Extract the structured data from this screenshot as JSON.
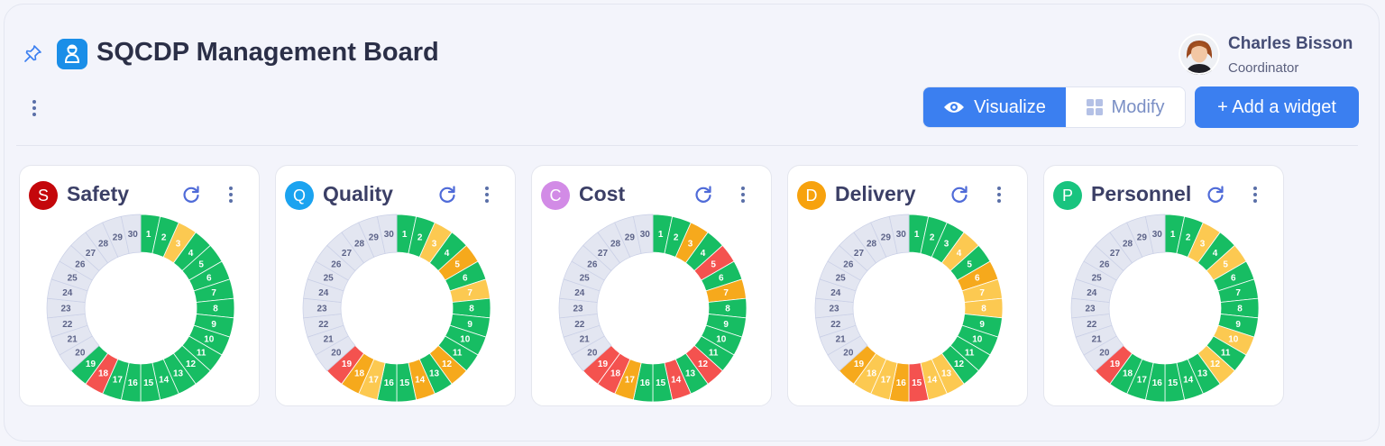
{
  "header": {
    "title": "SQCDP Management Board",
    "pin_icon": "pin-icon",
    "logo_icon": "worker-icon",
    "more_icon": "vertical-dots-icon"
  },
  "user": {
    "name": "Charles Bisson",
    "role": "Coordinator"
  },
  "toolbar": {
    "visualize_label": "Visualize",
    "modify_label": "Modify",
    "add_widget_label": "+ Add a widget",
    "active_mode": "Visualize"
  },
  "colors": {
    "green": "#17bd63",
    "yellow": "#fcc951",
    "orange": "#f6a91c",
    "red": "#f4524f",
    "empty": "#e3e6f1",
    "accent": "#3b7ff0"
  },
  "cards": [
    {
      "letter": "S",
      "title": "Safety",
      "badge_color": "#c4070b",
      "days": [
        "g",
        "g",
        "y",
        "g",
        "g",
        "g",
        "g",
        "g",
        "g",
        "g",
        "g",
        "g",
        "g",
        "g",
        "g",
        "g",
        "g",
        "r",
        "g",
        "e",
        "e",
        "e",
        "e",
        "e",
        "e",
        "e",
        "e",
        "e",
        "e",
        "e"
      ]
    },
    {
      "letter": "Q",
      "title": "Quality",
      "badge_color": "#1ba3f0",
      "days": [
        "g",
        "g",
        "y",
        "g",
        "o",
        "g",
        "y",
        "g",
        "g",
        "g",
        "g",
        "o",
        "g",
        "o",
        "g",
        "g",
        "y",
        "o",
        "r",
        "e",
        "e",
        "e",
        "e",
        "e",
        "e",
        "e",
        "e",
        "e",
        "e",
        "e"
      ]
    },
    {
      "letter": "C",
      "title": "Cost",
      "badge_color": "#d28be6",
      "days": [
        "g",
        "g",
        "o",
        "g",
        "r",
        "g",
        "o",
        "g",
        "g",
        "g",
        "g",
        "r",
        "g",
        "r",
        "g",
        "g",
        "o",
        "r",
        "r",
        "e",
        "e",
        "e",
        "e",
        "e",
        "e",
        "e",
        "e",
        "e",
        "e",
        "e"
      ]
    },
    {
      "letter": "D",
      "title": "Delivery",
      "badge_color": "#f7a20e",
      "days": [
        "g",
        "g",
        "g",
        "y",
        "g",
        "o",
        "y",
        "y",
        "g",
        "g",
        "g",
        "g",
        "y",
        "y",
        "r",
        "o",
        "y",
        "y",
        "o",
        "e",
        "e",
        "e",
        "e",
        "e",
        "e",
        "e",
        "e",
        "e",
        "e",
        "e"
      ]
    },
    {
      "letter": "P",
      "title": "Personnel",
      "badge_color": "#19c47f",
      "days": [
        "g",
        "g",
        "y",
        "g",
        "y",
        "g",
        "g",
        "g",
        "g",
        "y",
        "g",
        "y",
        "g",
        "g",
        "g",
        "g",
        "g",
        "g",
        "r",
        "e",
        "e",
        "e",
        "e",
        "e",
        "e",
        "e",
        "e",
        "e",
        "e",
        "e"
      ]
    }
  ]
}
